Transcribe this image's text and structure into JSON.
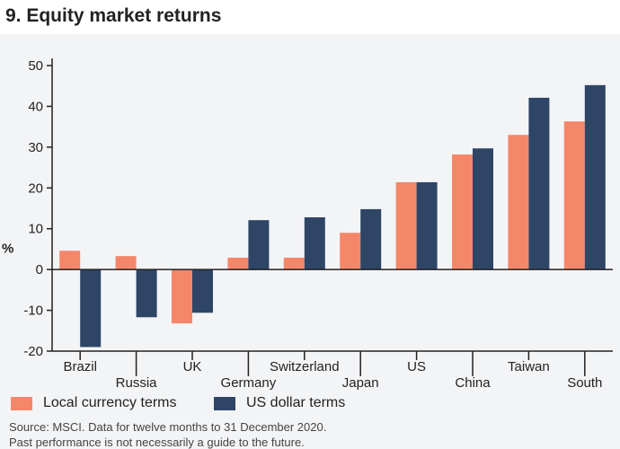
{
  "chart_data": {
    "type": "bar",
    "title": "9. Equity market returns",
    "ylabel": "%",
    "ylim": [
      -20,
      50
    ],
    "yticks": [
      -20,
      -10,
      0,
      10,
      20,
      30,
      40,
      50
    ],
    "categories": [
      "Brazil",
      "Russia",
      "UK",
      "Germany",
      "Switzerland",
      "Japan",
      "US",
      "China",
      "Taiwan",
      "South Korea"
    ],
    "series": [
      {
        "name": "Local currency terms",
        "color": "#f4876a",
        "values": [
          4.6,
          3.3,
          -13.2,
          2.9,
          2.9,
          9.0,
          21.4,
          28.2,
          33.0,
          36.3
        ]
      },
      {
        "name": "US dollar terms",
        "color": "#2e4566",
        "values": [
          -19.0,
          -11.7,
          -10.6,
          12.1,
          12.8,
          14.8,
          21.4,
          29.7,
          42.1,
          45.2
        ]
      }
    ],
    "grid": false,
    "legend": "bottom-left"
  },
  "source": "Source: MSCI. Data for twelve months to 31 December 2020.",
  "disclaimer": "Past performance is not necessarily a guide to the future."
}
